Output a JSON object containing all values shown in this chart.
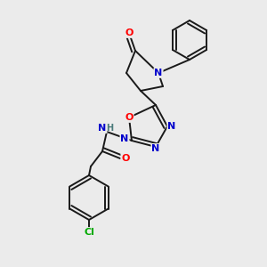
{
  "background_color": "#ebebeb",
  "bond_color": "#1a1a1a",
  "atom_colors": {
    "N": "#0000cc",
    "O": "#ff0000",
    "Cl": "#00aa00",
    "C": "#1a1a1a",
    "H": "#4a7a7a"
  },
  "figsize": [
    3.0,
    3.0
  ],
  "dpi": 100
}
